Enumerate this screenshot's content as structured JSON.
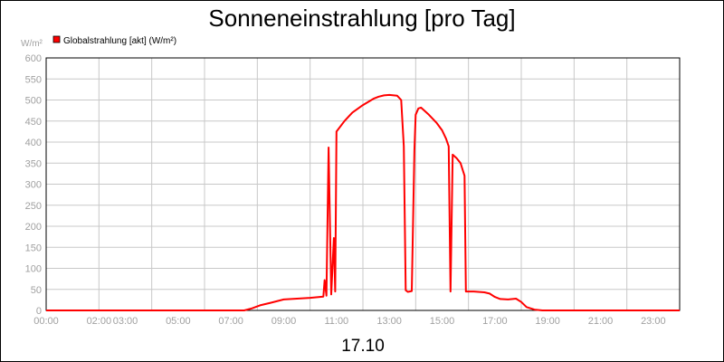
{
  "chart_data": {
    "type": "line",
    "title": "Sonneneinstrahlung [pro Tag]",
    "ylabel": "W/m²",
    "xlabel": "17.10",
    "ylim": [
      0,
      600
    ],
    "xlim": [
      0,
      24
    ],
    "yticks": [
      0,
      50,
      100,
      150,
      200,
      250,
      300,
      350,
      400,
      450,
      500,
      550,
      600
    ],
    "xtick_labels": [
      {
        "hour": 0,
        "label": "00:00"
      },
      {
        "hour": 2,
        "label": "02:00"
      },
      {
        "hour": 3,
        "label": "03:00"
      },
      {
        "hour": 5,
        "label": "05:00"
      },
      {
        "hour": 7,
        "label": "07:00"
      },
      {
        "hour": 9,
        "label": "09:00"
      },
      {
        "hour": 11,
        "label": "11:00"
      },
      {
        "hour": 13,
        "label": "13:00"
      },
      {
        "hour": 15,
        "label": "15:00"
      },
      {
        "hour": 17,
        "label": "17:00"
      },
      {
        "hour": 19,
        "label": "19:00"
      },
      {
        "hour": 21,
        "label": "21:00"
      },
      {
        "hour": 23,
        "label": "23:00"
      }
    ],
    "grid_x_hours": [
      0,
      2,
      4,
      6,
      8,
      10,
      12,
      14,
      16,
      18,
      20,
      22,
      24
    ],
    "grid": true,
    "legend_position": "top-left",
    "series": [
      {
        "name": "Globalstrahlung [akt] (W/m²)",
        "color": "#ff0000",
        "points": [
          [
            0,
            0
          ],
          [
            7.5,
            0
          ],
          [
            7.8,
            5
          ],
          [
            8.1,
            12
          ],
          [
            8.5,
            18
          ],
          [
            9.0,
            26
          ],
          [
            9.5,
            28
          ],
          [
            10.0,
            30
          ],
          [
            10.5,
            33
          ],
          [
            10.55,
            72
          ],
          [
            10.62,
            35
          ],
          [
            10.7,
            387
          ],
          [
            10.8,
            38
          ],
          [
            10.9,
            172
          ],
          [
            10.95,
            45
          ],
          [
            11.0,
            425
          ],
          [
            11.3,
            450
          ],
          [
            11.6,
            470
          ],
          [
            12.0,
            488
          ],
          [
            12.4,
            503
          ],
          [
            12.6,
            508
          ],
          [
            12.8,
            511
          ],
          [
            13.0,
            512
          ],
          [
            13.3,
            510
          ],
          [
            13.45,
            500
          ],
          [
            13.55,
            390
          ],
          [
            13.62,
            48
          ],
          [
            13.7,
            44
          ],
          [
            13.85,
            46
          ],
          [
            13.95,
            380
          ],
          [
            14.0,
            465
          ],
          [
            14.1,
            480
          ],
          [
            14.2,
            482
          ],
          [
            14.5,
            465
          ],
          [
            14.8,
            445
          ],
          [
            15.0,
            428
          ],
          [
            15.15,
            408
          ],
          [
            15.25,
            390
          ],
          [
            15.32,
            45
          ],
          [
            15.4,
            370
          ],
          [
            15.55,
            362
          ],
          [
            15.7,
            350
          ],
          [
            15.85,
            320
          ],
          [
            15.9,
            45
          ],
          [
            16.2,
            45
          ],
          [
            16.6,
            43
          ],
          [
            16.8,
            40
          ],
          [
            17.0,
            32
          ],
          [
            17.2,
            27
          ],
          [
            17.5,
            26
          ],
          [
            17.8,
            28
          ],
          [
            18.0,
            20
          ],
          [
            18.2,
            8
          ],
          [
            18.5,
            2
          ],
          [
            18.8,
            0
          ],
          [
            24,
            0
          ]
        ]
      }
    ]
  },
  "colors": {
    "line": "#ff0000",
    "grid": "#c8c8c8",
    "tick_text": "#a0a0a0",
    "legend_swatch": "#ff0000"
  }
}
